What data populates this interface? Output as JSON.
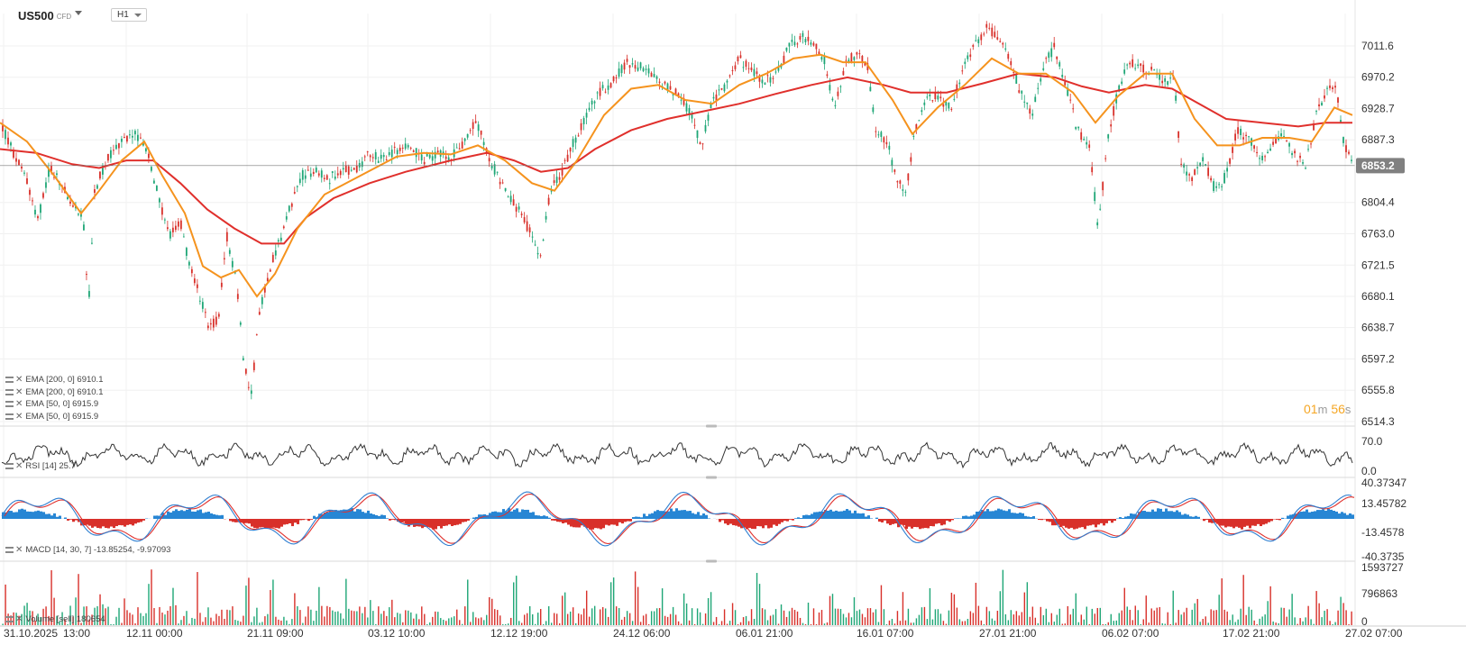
{
  "header": {
    "symbol": "US500",
    "symbol_type": "CFD",
    "timeframe": "H1"
  },
  "colors": {
    "bull": "#1ea676",
    "bear": "#d8302a",
    "ema_fast": "#f5931e",
    "ema_slow": "#e0302c",
    "macd_line": "#2f7fd1",
    "macd_signal": "#e0302c",
    "hist_up": "#2786d4",
    "hist_down": "#d8302a",
    "rsi": "#333333",
    "price_tag": "#808080"
  },
  "legends": {
    "ema1": "EMA [200,  0]  6910.1",
    "ema2": "EMA [200,  0]  6910.1",
    "ema3": "EMA [50,  0]  6915.9",
    "ema4": "EMA [50,  0]  6915.9",
    "rsi": "RSI [14]  25.7",
    "macd": "MACD [14,  30,  7]  -13.85254,  -9.97093",
    "volume": "Volume  [sell]  180654"
  },
  "countdown": {
    "minutes": "01",
    "m": "m",
    "seconds": "56",
    "s": "s"
  },
  "chart_data": {
    "type": "candlestick",
    "instrument": "US500",
    "current_price": "6853.2",
    "price_axis_labels": [
      "7011.6",
      "6970.2",
      "6928.7",
      "6887.3",
      "6804.4",
      "6763.0",
      "6721.5",
      "6680.1",
      "6638.7",
      "6597.2",
      "6555.8",
      "6514.3"
    ],
    "price_ylim": [
      6514.3,
      7011.6
    ],
    "x_tick_labels": [
      "31.10.2025",
      "13:00",
      "12.11  00:00",
      "21.11  09:00",
      "03.12  10:00",
      "12.12  19:00",
      "24.12  06:00",
      "06.01  21:00",
      "16.01  07:00",
      "27.01  21:00",
      "06.02  07:00",
      "17.02  21:00",
      "27.02  07:00"
    ],
    "close_path": [
      [
        0,
        6910
      ],
      [
        15,
        6870
      ],
      [
        30,
        6830
      ],
      [
        42,
        6780
      ],
      [
        55,
        6850
      ],
      [
        68,
        6830
      ],
      [
        80,
        6800
      ],
      [
        92,
        6790
      ],
      [
        98,
        6665
      ],
      [
        105,
        6820
      ],
      [
        118,
        6860
      ],
      [
        130,
        6880
      ],
      [
        145,
        6895
      ],
      [
        158,
        6890
      ],
      [
        168,
        6850
      ],
      [
        178,
        6800
      ],
      [
        188,
        6760
      ],
      [
        200,
        6780
      ],
      [
        210,
        6720
      ],
      [
        222,
        6680
      ],
      [
        232,
        6640
      ],
      [
        242,
        6650
      ],
      [
        252,
        6760
      ],
      [
        262,
        6700
      ],
      [
        270,
        6600
      ],
      [
        278,
        6545
      ],
      [
        288,
        6660
      ],
      [
        300,
        6720
      ],
      [
        312,
        6760
      ],
      [
        322,
        6800
      ],
      [
        335,
        6840
      ],
      [
        350,
        6845
      ],
      [
        365,
        6835
      ],
      [
        380,
        6850
      ],
      [
        395,
        6845
      ],
      [
        410,
        6870
      ],
      [
        425,
        6860
      ],
      [
        440,
        6875
      ],
      [
        455,
        6880
      ],
      [
        470,
        6860
      ],
      [
        485,
        6870
      ],
      [
        500,
        6865
      ],
      [
        515,
        6885
      ],
      [
        528,
        6915
      ],
      [
        540,
        6870
      ],
      [
        552,
        6840
      ],
      [
        565,
        6810
      ],
      [
        578,
        6790
      ],
      [
        590,
        6760
      ],
      [
        600,
        6730
      ],
      [
        610,
        6820
      ],
      [
        622,
        6840
      ],
      [
        635,
        6880
      ],
      [
        650,
        6920
      ],
      [
        665,
        6950
      ],
      [
        680,
        6965
      ],
      [
        695,
        6990
      ],
      [
        708,
        6985
      ],
      [
        720,
        6975
      ],
      [
        735,
        6960
      ],
      [
        750,
        6950
      ],
      [
        765,
        6925
      ],
      [
        778,
        6880
      ],
      [
        790,
        6940
      ],
      [
        805,
        6960
      ],
      [
        820,
        6995
      ],
      [
        835,
        6975
      ],
      [
        850,
        6965
      ],
      [
        862,
        6975
      ],
      [
        875,
        7010
      ],
      [
        890,
        7025
      ],
      [
        905,
        7010
      ],
      [
        915,
        6990
      ],
      [
        925,
        6930
      ],
      [
        938,
        6990
      ],
      [
        950,
        7000
      ],
      [
        962,
        6985
      ],
      [
        972,
        6900
      ],
      [
        985,
        6880
      ],
      [
        995,
        6830
      ],
      [
        1005,
        6820
      ],
      [
        1015,
        6900
      ],
      [
        1028,
        6950
      ],
      [
        1042,
        6940
      ],
      [
        1055,
        6930
      ],
      [
        1068,
        6980
      ],
      [
        1080,
        7010
      ],
      [
        1095,
        7035
      ],
      [
        1108,
        7020
      ],
      [
        1120,
        6990
      ],
      [
        1132,
        6950
      ],
      [
        1145,
        6920
      ],
      [
        1158,
        6990
      ],
      [
        1170,
        7010
      ],
      [
        1182,
        6960
      ],
      [
        1195,
        6900
      ],
      [
        1208,
        6880
      ],
      [
        1218,
        6770
      ],
      [
        1230,
        6900
      ],
      [
        1240,
        6950
      ],
      [
        1250,
        6990
      ],
      [
        1262,
        6985
      ],
      [
        1275,
        6980
      ],
      [
        1290,
        6965
      ],
      [
        1302,
        6970
      ],
      [
        1310,
        6855
      ],
      [
        1320,
        6835
      ],
      [
        1335,
        6860
      ],
      [
        1348,
        6820
      ],
      [
        1360,
        6840
      ],
      [
        1372,
        6900
      ],
      [
        1385,
        6890
      ],
      [
        1398,
        6860
      ],
      [
        1410,
        6880
      ],
      [
        1422,
        6890
      ],
      [
        1435,
        6870
      ],
      [
        1448,
        6855
      ],
      [
        1460,
        6920
      ],
      [
        1472,
        6955
      ],
      [
        1482,
        6960
      ],
      [
        1490,
        6885
      ],
      [
        1500,
        6853
      ]
    ],
    "ema_fast_path": [
      [
        0,
        6910
      ],
      [
        30,
        6885
      ],
      [
        60,
        6840
      ],
      [
        90,
        6790
      ],
      [
        110,
        6820
      ],
      [
        135,
        6860
      ],
      [
        160,
        6885
      ],
      [
        180,
        6840
      ],
      [
        205,
        6790
      ],
      [
        225,
        6720
      ],
      [
        245,
        6705
      ],
      [
        265,
        6715
      ],
      [
        285,
        6680
      ],
      [
        305,
        6710
      ],
      [
        330,
        6770
      ],
      [
        360,
        6815
      ],
      [
        400,
        6840
      ],
      [
        440,
        6865
      ],
      [
        470,
        6870
      ],
      [
        500,
        6868
      ],
      [
        530,
        6880
      ],
      [
        560,
        6860
      ],
      [
        590,
        6830
      ],
      [
        615,
        6820
      ],
      [
        640,
        6860
      ],
      [
        670,
        6920
      ],
      [
        700,
        6955
      ],
      [
        730,
        6960
      ],
      [
        760,
        6940
      ],
      [
        790,
        6935
      ],
      [
        820,
        6960
      ],
      [
        850,
        6975
      ],
      [
        880,
        6995
      ],
      [
        910,
        7000
      ],
      [
        935,
        6990
      ],
      [
        960,
        6990
      ],
      [
        990,
        6940
      ],
      [
        1012,
        6895
      ],
      [
        1040,
        6930
      ],
      [
        1070,
        6960
      ],
      [
        1100,
        6995
      ],
      [
        1130,
        6975
      ],
      [
        1160,
        6975
      ],
      [
        1190,
        6950
      ],
      [
        1215,
        6910
      ],
      [
        1240,
        6945
      ],
      [
        1270,
        6975
      ],
      [
        1300,
        6975
      ],
      [
        1325,
        6915
      ],
      [
        1350,
        6880
      ],
      [
        1375,
        6880
      ],
      [
        1400,
        6890
      ],
      [
        1430,
        6890
      ],
      [
        1455,
        6885
      ],
      [
        1480,
        6930
      ],
      [
        1500,
        6920
      ]
    ],
    "ema_slow_path": [
      [
        0,
        6875
      ],
      [
        40,
        6870
      ],
      [
        80,
        6855
      ],
      [
        110,
        6850
      ],
      [
        140,
        6860
      ],
      [
        170,
        6860
      ],
      [
        200,
        6830
      ],
      [
        230,
        6795
      ],
      [
        260,
        6770
      ],
      [
        290,
        6750
      ],
      [
        315,
        6750
      ],
      [
        340,
        6785
      ],
      [
        370,
        6810
      ],
      [
        410,
        6830
      ],
      [
        450,
        6845
      ],
      [
        500,
        6860
      ],
      [
        540,
        6870
      ],
      [
        570,
        6860
      ],
      [
        600,
        6845
      ],
      [
        630,
        6850
      ],
      [
        660,
        6875
      ],
      [
        700,
        6900
      ],
      [
        740,
        6915
      ],
      [
        780,
        6925
      ],
      [
        820,
        6935
      ],
      [
        860,
        6948
      ],
      [
        900,
        6960
      ],
      [
        940,
        6970
      ],
      [
        980,
        6960
      ],
      [
        1010,
        6950
      ],
      [
        1050,
        6950
      ],
      [
        1090,
        6962
      ],
      [
        1130,
        6975
      ],
      [
        1170,
        6970
      ],
      [
        1200,
        6958
      ],
      [
        1230,
        6950
      ],
      [
        1270,
        6960
      ],
      [
        1300,
        6955
      ],
      [
        1330,
        6935
      ],
      [
        1360,
        6915
      ],
      [
        1400,
        6910
      ],
      [
        1440,
        6905
      ],
      [
        1470,
        6910
      ],
      [
        1500,
        6910
      ]
    ],
    "rsi": {
      "current": 25.7,
      "ylim": [
        0,
        100
      ],
      "axis_labels": [
        "70.0",
        "0.0"
      ]
    },
    "macd": {
      "line": -13.85254,
      "signal": -9.97093,
      "axis_labels": [
        "40.37347",
        "13.45782",
        "-13.4578",
        "-40.3735"
      ]
    },
    "volume": {
      "last": 180654,
      "axis_labels": [
        "1593727",
        "796863",
        "0"
      ]
    }
  }
}
